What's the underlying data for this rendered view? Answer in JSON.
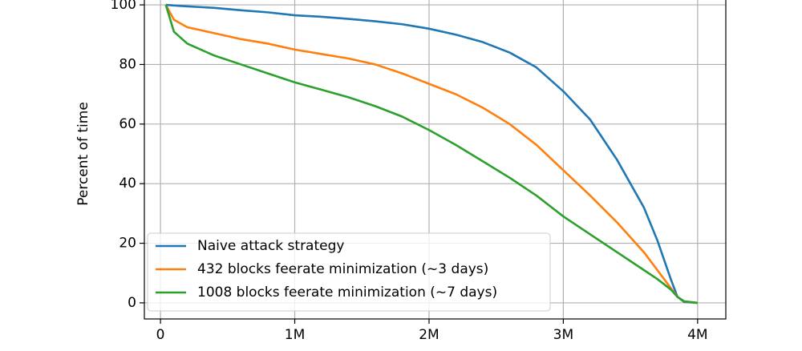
{
  "chart_data": {
    "type": "line",
    "y_label": "Percent of time",
    "x": [
      40000,
      100000,
      200000,
      400000,
      600000,
      800000,
      1000000,
      1200000,
      1400000,
      1600000,
      1800000,
      2000000,
      2200000,
      2400000,
      2600000,
      2800000,
      3000000,
      3200000,
      3400000,
      3600000,
      3700000,
      3800000,
      3850000,
      3900000,
      4000000
    ],
    "series": [
      {
        "name": "Naive attack strategy",
        "color": "#1f77b4",
        "values": [
          100,
          99.8,
          99.5,
          99,
          98.2,
          97.5,
          96.5,
          96,
          95.3,
          94.5,
          93.5,
          92,
          90,
          87.5,
          84,
          79,
          71,
          61.5,
          48,
          32,
          21,
          8,
          2,
          0.3,
          0
        ]
      },
      {
        "name": "432 blocks feerate minimization (~3 days)",
        "color": "#ff7f0e",
        "values": [
          100,
          95,
          92.5,
          90.5,
          88.5,
          87,
          85,
          83.5,
          82,
          80,
          77,
          73.5,
          70,
          65.5,
          60,
          53,
          44.5,
          36,
          27,
          17,
          11,
          5,
          2,
          0.5,
          0
        ]
      },
      {
        "name": "1008 blocks feerate minimization (~7 days)",
        "color": "#2ca02c",
        "values": [
          100,
          91,
          87,
          83,
          80,
          77,
          74,
          71.5,
          69,
          66,
          62.5,
          58,
          53,
          47.5,
          42,
          36,
          29,
          23,
          17,
          11,
          8,
          4.5,
          2,
          0.5,
          0
        ]
      }
    ],
    "xlim": [
      -120000,
      4210000
    ],
    "ylim": [
      -5.4,
      105.4
    ],
    "xticks": [
      0,
      {
        "value": 1000000,
        "label": "1M"
      },
      {
        "value": 2000000,
        "label": "2M"
      },
      {
        "value": 3000000,
        "label": "3M"
      },
      {
        "value": 4000000,
        "label": "4M"
      }
    ],
    "yticks": [
      0,
      20,
      40,
      60,
      80,
      100
    ],
    "grid": true,
    "legend": "lower left"
  }
}
